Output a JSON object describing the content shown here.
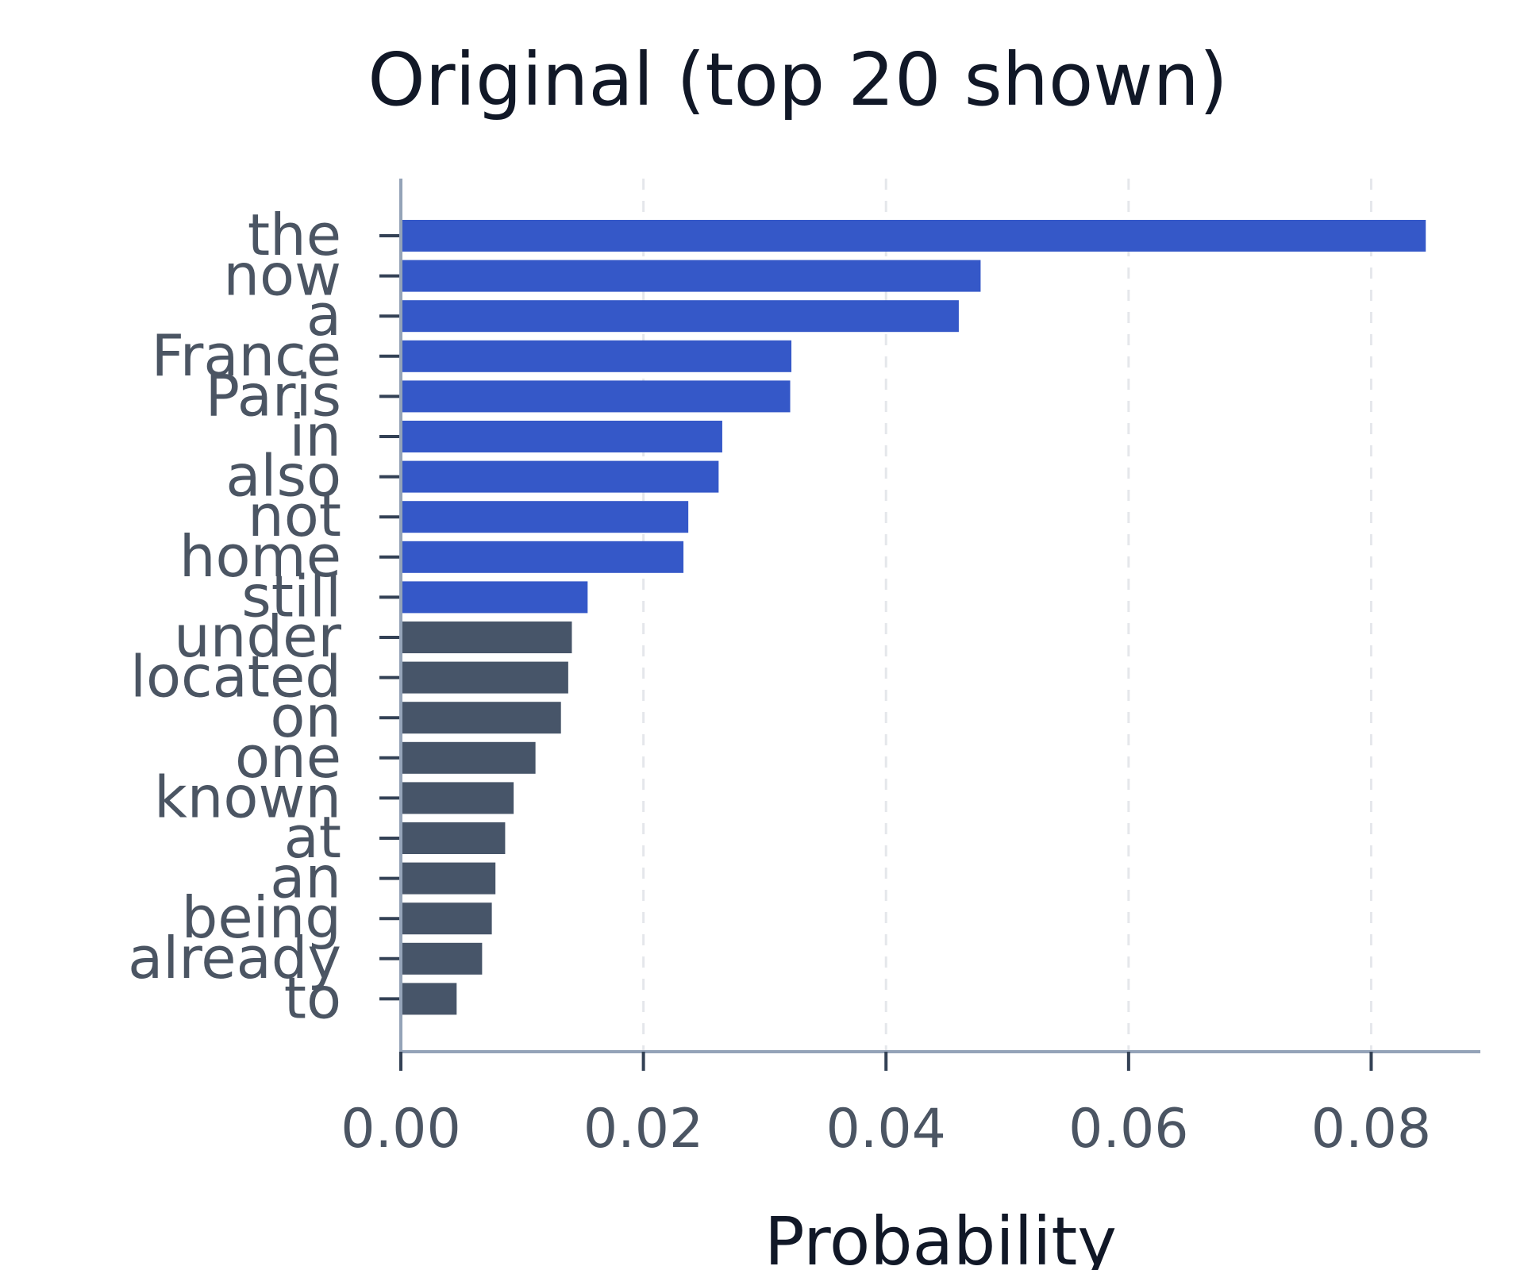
{
  "chart_data": {
    "type": "bar",
    "orientation": "horizontal",
    "title": "Original (top 20 shown)",
    "xlabel": "Probability",
    "ylabel": "",
    "xlim": [
      0,
      0.089
    ],
    "xticks": [
      0.0,
      0.02,
      0.04,
      0.06,
      0.08
    ],
    "xtick_labels": [
      "0.00",
      "0.02",
      "0.04",
      "0.06",
      "0.08"
    ],
    "grid": "vertical dashed",
    "categories": [
      "the",
      "now",
      "a",
      "France",
      "Paris",
      "in",
      "also",
      "not",
      "home",
      "still",
      "under",
      "located",
      "on",
      "one",
      "known",
      "at",
      "an",
      "being",
      "already",
      "to"
    ],
    "values": [
      0.0845,
      0.0478,
      0.046,
      0.0322,
      0.0321,
      0.0265,
      0.0262,
      0.0237,
      0.0233,
      0.0154,
      0.0141,
      0.0138,
      0.0132,
      0.0111,
      0.0093,
      0.0086,
      0.0078,
      0.0075,
      0.0067,
      0.0046
    ],
    "highlight_count": 10,
    "colors": {
      "highlight": "#3558c8",
      "other": "#475569"
    }
  }
}
